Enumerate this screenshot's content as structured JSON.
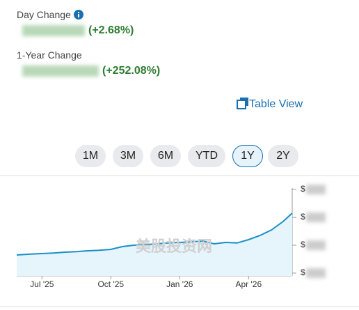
{
  "header": {
    "day_change_label": "Day Change",
    "day_change_pct": "(+2.68%)",
    "year_change_label": "1-Year Change",
    "year_change_pct": "(+252.08%)",
    "table_view": "Table View"
  },
  "ranges": [
    "1M",
    "3M",
    "6M",
    "YTD",
    "1Y",
    "2Y"
  ],
  "selected_range": "1Y",
  "watermark": "美股投资网",
  "chart_data": {
    "type": "line",
    "x": [
      -1.1,
      -0.5,
      0,
      0.5,
      1,
      1.5,
      2,
      2.5,
      3,
      3.5,
      4,
      4.5,
      5,
      5.5,
      6,
      6.5,
      7,
      7.5,
      8,
      8.5,
      9,
      9.5,
      10,
      10.5,
      10.9
    ],
    "values": [
      0.65,
      0.68,
      0.7,
      0.72,
      0.75,
      0.77,
      0.8,
      0.82,
      0.85,
      0.95,
      1.0,
      1.02,
      1.05,
      1.08,
      1.1,
      1.12,
      1.15,
      1.05,
      1.1,
      1.08,
      1.2,
      1.35,
      1.55,
      1.85,
      2.15
    ],
    "color": "#1a8fc8",
    "xlim": [
      -1.1,
      10.9
    ],
    "xticks": [
      {
        "value": 0,
        "label": "Jul '25"
      },
      {
        "value": 3,
        "label": "Oct '25"
      },
      {
        "value": 6,
        "label": "Jan '26"
      },
      {
        "value": 9,
        "label": "Apr '26"
      }
    ],
    "ylim": [
      0,
      3.05
    ],
    "yticks": [
      {
        "value": 0,
        "label": "$"
      },
      {
        "value": 1,
        "label": "$"
      },
      {
        "value": 2,
        "label": "$"
      },
      {
        "value": 3,
        "label": "$"
      }
    ]
  }
}
